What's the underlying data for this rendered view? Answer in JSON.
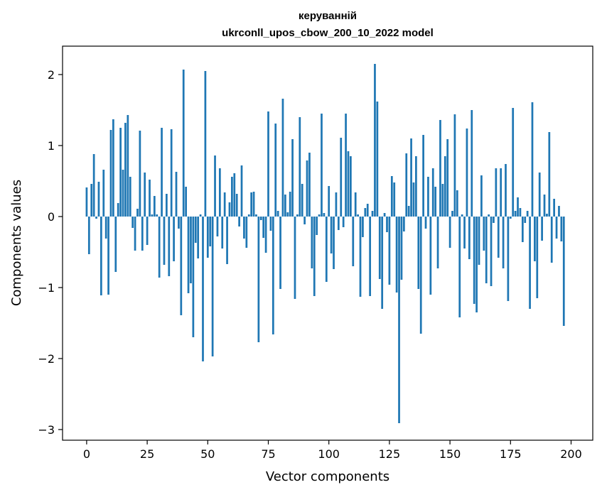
{
  "chart_data": {
    "type": "bar",
    "title_line1": "керуванній",
    "title_line2": "ukrconll_upos_cbow_200_10_2022 model",
    "xlabel": "Vector components",
    "ylabel": "Components values",
    "xlim": [
      -9.95,
      208.95
    ],
    "ylim": [
      -3.15,
      2.4
    ],
    "grid": false,
    "bar_color": "#1f77b4",
    "xticks": [
      {
        "value": 0,
        "label": "0"
      },
      {
        "value": 25,
        "label": "25"
      },
      {
        "value": 50,
        "label": "50"
      },
      {
        "value": 75,
        "label": "75"
      },
      {
        "value": 100,
        "label": "100"
      },
      {
        "value": 125,
        "label": "125"
      },
      {
        "value": 150,
        "label": "150"
      },
      {
        "value": 175,
        "label": "175"
      },
      {
        "value": 200,
        "label": "200"
      }
    ],
    "yticks": [
      {
        "value": -3,
        "label": "−3"
      },
      {
        "value": -2,
        "label": "−2"
      },
      {
        "value": -1,
        "label": "−1"
      },
      {
        "value": 0,
        "label": "0"
      },
      {
        "value": 1,
        "label": "1"
      },
      {
        "value": 2,
        "label": "2"
      }
    ],
    "values": [
      0.41,
      -0.53,
      0.46,
      0.88,
      -0.03,
      0.49,
      -1.11,
      0.66,
      -0.31,
      -1.1,
      1.22,
      1.37,
      -0.78,
      0.19,
      1.25,
      0.66,
      1.32,
      1.43,
      0.56,
      -0.16,
      -0.48,
      0.11,
      1.21,
      -0.48,
      0.62,
      -0.4,
      0.52,
      0.03,
      0.29,
      0.03,
      -0.86,
      1.25,
      -0.68,
      0.32,
      -0.84,
      1.23,
      -0.63,
      0.63,
      -0.17,
      -1.39,
      2.07,
      0.42,
      -1.08,
      -0.94,
      -1.7,
      -0.37,
      -0.59,
      0.03,
      -2.04,
      2.05,
      -0.58,
      -0.42,
      -1.97,
      0.86,
      -0.28,
      0.68,
      -0.45,
      0.34,
      -0.67,
      0.2,
      0.56,
      0.61,
      0.32,
      -0.14,
      0.72,
      -0.31,
      -0.44,
      0.03,
      0.34,
      0.35,
      0.03,
      -1.77,
      -0.05,
      -0.3,
      -0.51,
      1.48,
      -0.2,
      -1.66,
      1.31,
      0.08,
      -1.02,
      1.66,
      0.31,
      0.06,
      0.35,
      1.09,
      -1.16,
      0.03,
      1.4,
      0.46,
      -0.11,
      0.79,
      0.9,
      -0.73,
      -1.12,
      -0.26,
      0.03,
      1.45,
      0.05,
      -0.92,
      0.43,
      -0.52,
      -0.74,
      0.34,
      -0.19,
      1.11,
      -0.15,
      1.45,
      0.92,
      0.85,
      -0.7,
      0.34,
      0.03,
      -1.13,
      -0.29,
      0.12,
      0.18,
      -1.12,
      0.08,
      2.15,
      1.62,
      -0.88,
      -1.3,
      0.05,
      -0.22,
      -0.96,
      0.57,
      0.48,
      -1.07,
      -2.91,
      -0.89,
      -0.21,
      0.89,
      0.15,
      1.1,
      0.48,
      0.85,
      -1.02,
      -1.65,
      1.15,
      -0.17,
      0.56,
      -1.1,
      0.68,
      0.42,
      -0.73,
      1.36,
      0.46,
      0.85,
      1.09,
      -0.44,
      0.08,
      1.44,
      0.37,
      -1.42,
      0.03,
      -0.45,
      1.24,
      -0.6,
      1.5,
      -1.23,
      -1.35,
      -0.68,
      0.58,
      -0.48,
      -0.94,
      0.03,
      -0.98,
      -0.09,
      0.68,
      -0.58,
      0.68,
      -0.73,
      0.74,
      -1.19,
      -0.03,
      1.53,
      0.08,
      0.27,
      0.12,
      -0.36,
      -0.09,
      0.08,
      -1.3,
      1.61,
      -0.63,
      -1.15,
      0.62,
      -0.34,
      0.31,
      0.04,
      1.19,
      -0.65,
      0.25,
      -0.31,
      0.15,
      -0.35,
      -1.54
    ]
  }
}
